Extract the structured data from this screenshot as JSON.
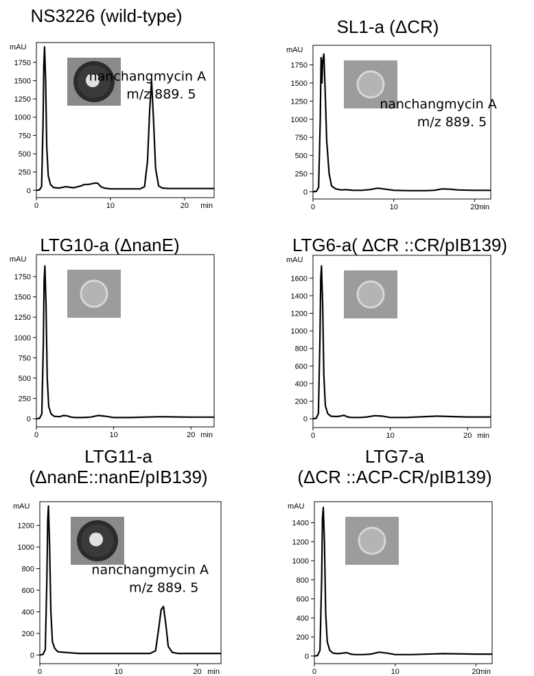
{
  "chart_data": [
    {
      "type": "line",
      "title": "NS3226 (wild-type)",
      "ylabel": "mAU",
      "xlabel": "min",
      "xlim": [
        0,
        24
      ],
      "ylim": [
        -100,
        2020
      ],
      "yticks": [
        0,
        250,
        500,
        750,
        1000,
        1250,
        1500,
        1750
      ],
      "xticks": [
        0,
        10,
        20
      ],
      "grid": false,
      "inset": {
        "kind": "inhibition-zone-photo",
        "ring": true,
        "tone": "dark"
      },
      "annotation": {
        "line1": "nanchangmycin A",
        "line2": "m/z 889. 5"
      },
      "series": [
        {
          "x": [
            0,
            0.4,
            0.7,
            0.9,
            1.0,
            1.1,
            1.25,
            1.4,
            1.6,
            1.9,
            2.3,
            3,
            4,
            5,
            6,
            6.5,
            7,
            7.5,
            8,
            8.3,
            8.7,
            9.2,
            10,
            12,
            14,
            14.6,
            15.0,
            15.3,
            15.55,
            15.8,
            16.1,
            16.5,
            17,
            18,
            20,
            22,
            24
          ],
          "y": [
            0,
            5,
            50,
            900,
            1700,
            1960,
            1500,
            600,
            200,
            80,
            40,
            30,
            50,
            35,
            60,
            80,
            80,
            90,
            100,
            95,
            50,
            30,
            20,
            20,
            20,
            50,
            400,
            1100,
            1500,
            1000,
            300,
            60,
            30,
            25,
            25,
            25,
            25
          ]
        }
      ]
    },
    {
      "type": "line",
      "title": "SL1-a (ΔCR)",
      "ylabel": "mAU",
      "xlabel": "min",
      "xlim": [
        0,
        22
      ],
      "ylim": [
        -100,
        2020
      ],
      "yticks": [
        0,
        250,
        500,
        750,
        1000,
        1250,
        1500,
        1750
      ],
      "xticks": [
        0,
        10,
        20
      ],
      "grid": false,
      "inset": {
        "kind": "inhibition-zone-photo",
        "ring": false,
        "tone": "light"
      },
      "annotation": {
        "line1": "nanchangmycin A",
        "line2": "m/z 889. 5"
      },
      "series": [
        {
          "x": [
            0,
            0.4,
            0.7,
            0.9,
            1.0,
            1.1,
            1.2,
            1.35,
            1.5,
            1.7,
            2.0,
            2.3,
            2.8,
            3.5,
            4,
            5,
            6,
            7,
            8,
            9,
            10,
            12,
            14,
            15,
            16,
            17,
            18,
            20,
            22
          ],
          "y": [
            0,
            5,
            60,
            1000,
            1850,
            1500,
            1800,
            1900,
            1400,
            700,
            250,
            80,
            40,
            25,
            30,
            20,
            20,
            30,
            50,
            35,
            20,
            15,
            15,
            20,
            40,
            35,
            25,
            20,
            20
          ]
        }
      ]
    },
    {
      "type": "line",
      "title": "LTG10-a (ΔnanE)",
      "ylabel": "mAU",
      "xlabel": "min",
      "xlim": [
        0,
        23
      ],
      "ylim": [
        -100,
        2020
      ],
      "yticks": [
        0,
        250,
        500,
        750,
        1000,
        1250,
        1500,
        1750
      ],
      "xticks": [
        0,
        10,
        20
      ],
      "grid": false,
      "inset": {
        "kind": "inhibition-zone-photo",
        "ring": false,
        "tone": "light"
      },
      "series": [
        {
          "x": [
            0,
            0.4,
            0.7,
            0.9,
            1.0,
            1.1,
            1.25,
            1.4,
            1.6,
            1.9,
            2.3,
            3,
            3.5,
            4,
            4.5,
            5,
            6,
            7,
            8,
            9,
            10,
            12,
            16,
            20,
            23
          ],
          "y": [
            0,
            5,
            60,
            900,
            1700,
            1880,
            1400,
            500,
            150,
            60,
            30,
            25,
            40,
            35,
            20,
            15,
            15,
            20,
            40,
            30,
            15,
            15,
            25,
            20,
            20
          ]
        }
      ]
    },
    {
      "type": "line",
      "title": "LTG6-a( ∆CR ::CR/pIB139)",
      "ylabel": "mAU",
      "xlabel": "min",
      "xlim": [
        0,
        23
      ],
      "ylim": [
        -100,
        1860
      ],
      "yticks": [
        0,
        200,
        400,
        600,
        800,
        1000,
        1200,
        1400,
        1600
      ],
      "xticks": [
        0,
        10,
        20
      ],
      "grid": false,
      "inset": {
        "kind": "inhibition-zone-photo",
        "ring": false,
        "tone": "light"
      },
      "series": [
        {
          "x": [
            0,
            0.4,
            0.7,
            0.9,
            1.0,
            1.1,
            1.25,
            1.4,
            1.6,
            1.9,
            2.3,
            3,
            3.5,
            4,
            4.5,
            5,
            6,
            7,
            8,
            9,
            10,
            12,
            16,
            20,
            23
          ],
          "y": [
            0,
            5,
            60,
            900,
            1600,
            1740,
            1300,
            500,
            150,
            60,
            30,
            25,
            30,
            40,
            20,
            15,
            15,
            20,
            35,
            30,
            15,
            15,
            30,
            20,
            20
          ]
        }
      ]
    },
    {
      "type": "line",
      "title": "LTG11-a (ΔnanE::nanE/pIB139)",
      "title_lines": [
        "LTG11-a",
        "(ΔnanE::nanE/pIB139)"
      ],
      "ylabel": "mAU",
      "xlabel": "min",
      "xlim": [
        0,
        23
      ],
      "ylim": [
        -80,
        1420
      ],
      "yticks": [
        0,
        200,
        400,
        600,
        800,
        1000,
        1200
      ],
      "xticks": [
        0,
        10,
        20
      ],
      "grid": false,
      "inset": {
        "kind": "inhibition-zone-photo",
        "ring": true,
        "tone": "dark"
      },
      "annotation": {
        "line1": "nanchangmycin A",
        "line2": "m/z 889. 5"
      },
      "series": [
        {
          "x": [
            0,
            0.4,
            0.7,
            0.9,
            1.0,
            1.1,
            1.25,
            1.4,
            1.6,
            1.9,
            2.3,
            3,
            4,
            5,
            6,
            8,
            10,
            12,
            14,
            14.7,
            15.1,
            15.4,
            15.7,
            16.0,
            16.3,
            16.8,
            17.5,
            19,
            21,
            23
          ],
          "y": [
            0,
            5,
            50,
            700,
            1250,
            1380,
            1000,
            400,
            120,
            60,
            30,
            25,
            20,
            15,
            15,
            15,
            15,
            15,
            15,
            40,
            250,
            420,
            450,
            280,
            80,
            25,
            15,
            15,
            15,
            15
          ]
        }
      ]
    },
    {
      "type": "line",
      "title": "LTG7-a (ΔCR ::ACP-CR/pIB139)",
      "title_lines": [
        "LTG7-a",
        "(ΔCR ::ACP-CR/pIB139)"
      ],
      "ylabel": "mAU",
      "xlabel": "min",
      "xlim": [
        0,
        22
      ],
      "ylim": [
        -80,
        1620
      ],
      "yticks": [
        0,
        200,
        400,
        600,
        800,
        1000,
        1200,
        1400
      ],
      "xticks": [
        0,
        10,
        20
      ],
      "grid": false,
      "inset": {
        "kind": "inhibition-zone-photo",
        "ring": false,
        "tone": "light"
      },
      "series": [
        {
          "x": [
            0,
            0.4,
            0.7,
            0.9,
            1.0,
            1.1,
            1.25,
            1.4,
            1.6,
            1.9,
            2.3,
            3,
            3.5,
            4,
            4.5,
            5,
            6,
            7,
            8,
            9,
            10,
            12,
            16,
            20,
            22
          ],
          "y": [
            0,
            5,
            60,
            800,
            1450,
            1560,
            1200,
            450,
            150,
            60,
            30,
            25,
            30,
            35,
            20,
            15,
            15,
            20,
            40,
            30,
            15,
            15,
            25,
            20,
            20
          ]
        }
      ]
    }
  ]
}
